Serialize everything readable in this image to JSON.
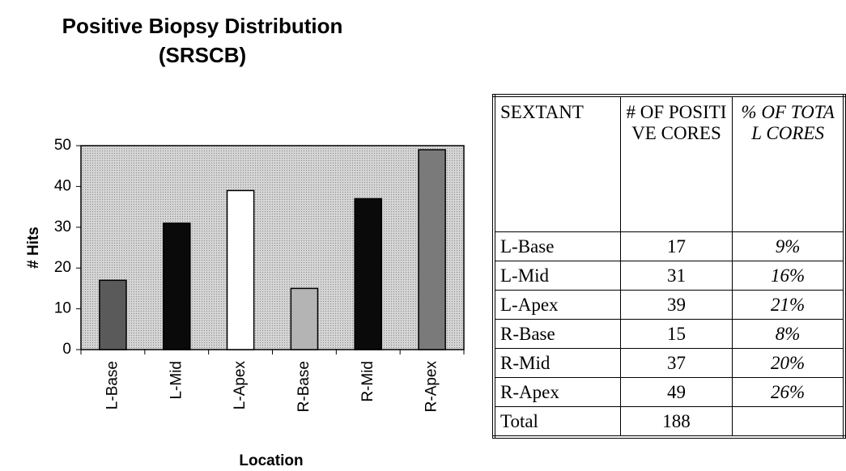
{
  "chart_data": {
    "type": "bar",
    "title": "Positive Biopsy Distribution",
    "subtitle": "(SRSCB)",
    "x_label": "Location",
    "y_label": "# Hits",
    "categories": [
      "L-Base",
      "L-Mid",
      "L-Apex",
      "R-Base",
      "R-Mid",
      "R-Apex"
    ],
    "values": [
      17,
      31,
      39,
      15,
      37,
      49
    ],
    "colors": [
      "#5a5a5a",
      "#0a0a0a",
      "#ffffff",
      "#b4b4b4",
      "#0a0a0a",
      "#7a7a7a"
    ],
    "ylim": [
      0,
      50
    ],
    "yticks": [
      0,
      10,
      20,
      30,
      40,
      50
    ],
    "grid": false
  },
  "table": {
    "header": [
      "SEXTANT",
      "# OF POSITIVE CORES",
      "% OF TOTAL CORES"
    ],
    "rows": [
      [
        "L-Base",
        "17",
        "9%"
      ],
      [
        "L-Mid",
        "31",
        "16%"
      ],
      [
        "L-Apex",
        "39",
        "21%"
      ],
      [
        "R-Base",
        "15",
        "8%"
      ],
      [
        "R-Mid",
        "37",
        "20%"
      ],
      [
        "R-Apex",
        "49",
        "26%"
      ],
      [
        "Total",
        "188"
      ]
    ]
  }
}
